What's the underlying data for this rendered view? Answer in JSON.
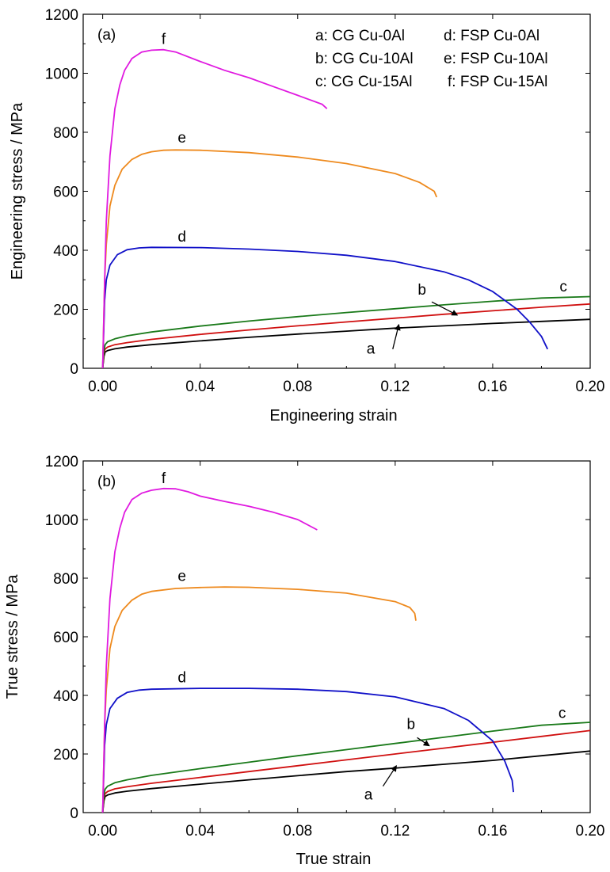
{
  "chart_data": [
    {
      "type": "line",
      "panel_label": "(a)",
      "xlabel": "Engineering strain",
      "ylabel": "Engineering stress / MPa",
      "xlim": [
        -0.008,
        0.2
      ],
      "ylim": [
        0,
        1200
      ],
      "xticks": [
        "0.00",
        "0.04",
        "0.08",
        "0.12",
        "0.16",
        "0.20"
      ],
      "yticks": [
        "0",
        "200",
        "400",
        "600",
        "800",
        "1000",
        "1200"
      ],
      "legend": [
        "a: CG Cu-0Al",
        "b: CG Cu-10Al",
        "c: CG Cu-15Al",
        "d: FSP Cu-0Al",
        "e: FSP Cu-10Al",
        "f: FSP Cu-15Al"
      ],
      "series": [
        {
          "name": "a",
          "color": "#000000",
          "x": [
            0,
            0.0005,
            0.001,
            0.002,
            0.005,
            0.01,
            0.02,
            0.04,
            0.06,
            0.08,
            0.1,
            0.12,
            0.14,
            0.16,
            0.18,
            0.2
          ],
          "y": [
            0,
            40,
            55,
            60,
            66,
            72,
            80,
            93,
            105,
            116,
            126,
            136,
            144,
            152,
            159,
            166
          ]
        },
        {
          "name": "b",
          "color": "#d01010",
          "x": [
            0,
            0.0005,
            0.001,
            0.002,
            0.005,
            0.01,
            0.02,
            0.04,
            0.06,
            0.08,
            0.1,
            0.12,
            0.14,
            0.16,
            0.18,
            0.2
          ],
          "y": [
            0,
            50,
            65,
            72,
            80,
            87,
            98,
            115,
            130,
            144,
            157,
            170,
            183,
            195,
            207,
            218
          ]
        },
        {
          "name": "c",
          "color": "#1a7a1a",
          "x": [
            0,
            0.0005,
            0.001,
            0.002,
            0.005,
            0.01,
            0.02,
            0.04,
            0.06,
            0.08,
            0.1,
            0.12,
            0.14,
            0.16,
            0.18,
            0.2
          ],
          "y": [
            0,
            60,
            80,
            90,
            100,
            110,
            123,
            143,
            160,
            175,
            189,
            202,
            215,
            227,
            238,
            243
          ]
        },
        {
          "name": "d",
          "color": "#1010c8",
          "x": [
            0,
            0.0008,
            0.0015,
            0.003,
            0.006,
            0.01,
            0.015,
            0.02,
            0.04,
            0.06,
            0.08,
            0.1,
            0.12,
            0.14,
            0.15,
            0.16,
            0.17,
            0.175,
            0.18,
            0.1825
          ],
          "y": [
            0,
            230,
            300,
            350,
            385,
            402,
            408,
            410,
            409,
            404,
            396,
            383,
            362,
            327,
            300,
            260,
            200,
            158,
            108,
            65
          ]
        },
        {
          "name": "e",
          "color": "#ee8a1e",
          "x": [
            0,
            0.0008,
            0.0015,
            0.003,
            0.005,
            0.008,
            0.012,
            0.016,
            0.02,
            0.025,
            0.03,
            0.04,
            0.06,
            0.08,
            0.1,
            0.12,
            0.13,
            0.136,
            0.137
          ],
          "y": [
            0,
            300,
            420,
            550,
            620,
            675,
            708,
            725,
            734,
            739,
            740,
            739,
            731,
            716,
            694,
            660,
            630,
            600,
            580
          ]
        },
        {
          "name": "f",
          "color": "#e01ae0",
          "x": [
            0,
            0.0008,
            0.0015,
            0.003,
            0.005,
            0.007,
            0.009,
            0.012,
            0.016,
            0.02,
            0.025,
            0.03,
            0.04,
            0.05,
            0.06,
            0.07,
            0.08,
            0.09,
            0.092
          ],
          "y": [
            0,
            300,
            500,
            720,
            880,
            960,
            1010,
            1050,
            1072,
            1078,
            1080,
            1072,
            1040,
            1010,
            985,
            955,
            925,
            895,
            880
          ]
        }
      ],
      "curve_labels": [
        {
          "text": "a",
          "x": 0.11,
          "y": 50
        },
        {
          "text": "b",
          "x": 0.131,
          "y": 250
        },
        {
          "text": "c",
          "x": 0.189,
          "y": 260
        },
        {
          "text": "d",
          "x": 0.0325,
          "y": 430
        },
        {
          "text": "e",
          "x": 0.0325,
          "y": 765
        },
        {
          "text": "f",
          "x": 0.025,
          "y": 1100
        }
      ],
      "arrows": [
        {
          "label": "a",
          "from": [
            0.119,
            65
          ],
          "to": [
            0.1215,
            148
          ]
        },
        {
          "label": "b",
          "from": [
            0.135,
            225
          ],
          "to": [
            0.1455,
            180
          ]
        }
      ]
    },
    {
      "type": "line",
      "panel_label": "(b)",
      "xlabel": "True strain",
      "ylabel": "True stress / MPa",
      "xlim": [
        -0.008,
        0.2
      ],
      "ylim": [
        0,
        1200
      ],
      "xticks": [
        "0.00",
        "0.04",
        "0.08",
        "0.12",
        "0.16",
        "0.20"
      ],
      "yticks": [
        "0",
        "200",
        "400",
        "600",
        "800",
        "1000",
        "1200"
      ],
      "series": [
        {
          "name": "a",
          "color": "#000000",
          "x": [
            0,
            0.0005,
            0.001,
            0.002,
            0.005,
            0.01,
            0.02,
            0.04,
            0.06,
            0.08,
            0.1,
            0.12,
            0.14,
            0.16,
            0.18,
            0.2
          ],
          "y": [
            0,
            40,
            55,
            60,
            67,
            73,
            82,
            97,
            112,
            126,
            140,
            152,
            165,
            178,
            194,
            210
          ]
        },
        {
          "name": "b",
          "color": "#d01010",
          "x": [
            0,
            0.0005,
            0.001,
            0.002,
            0.005,
            0.01,
            0.02,
            0.04,
            0.06,
            0.08,
            0.1,
            0.12,
            0.14,
            0.16,
            0.18,
            0.2
          ],
          "y": [
            0,
            50,
            65,
            72,
            81,
            88,
            100,
            120,
            140,
            160,
            180,
            200,
            220,
            240,
            260,
            280
          ]
        },
        {
          "name": "c",
          "color": "#1a7a1a",
          "x": [
            0,
            0.0005,
            0.001,
            0.002,
            0.005,
            0.01,
            0.02,
            0.04,
            0.06,
            0.08,
            0.1,
            0.12,
            0.14,
            0.16,
            0.18,
            0.2
          ],
          "y": [
            0,
            60,
            80,
            90,
            102,
            112,
            127,
            150,
            172,
            194,
            215,
            236,
            257,
            278,
            298,
            308
          ]
        },
        {
          "name": "d",
          "color": "#1010c8",
          "x": [
            0,
            0.0008,
            0.0015,
            0.003,
            0.006,
            0.01,
            0.015,
            0.02,
            0.04,
            0.06,
            0.08,
            0.1,
            0.12,
            0.14,
            0.15,
            0.16,
            0.165,
            0.168,
            0.1685
          ],
          "y": [
            0,
            230,
            300,
            355,
            390,
            410,
            418,
            421,
            424,
            424,
            421,
            413,
            395,
            355,
            315,
            245,
            175,
            110,
            70
          ]
        },
        {
          "name": "e",
          "color": "#ee8a1e",
          "x": [
            0,
            0.0008,
            0.0015,
            0.003,
            0.005,
            0.008,
            0.012,
            0.016,
            0.02,
            0.03,
            0.04,
            0.05,
            0.06,
            0.08,
            0.1,
            0.12,
            0.126,
            0.128,
            0.1285
          ],
          "y": [
            0,
            300,
            420,
            560,
            635,
            690,
            725,
            745,
            755,
            765,
            768,
            770,
            769,
            762,
            749,
            720,
            700,
            680,
            655
          ]
        },
        {
          "name": "f",
          "color": "#e01ae0",
          "x": [
            0,
            0.0008,
            0.0015,
            0.003,
            0.005,
            0.007,
            0.009,
            0.012,
            0.016,
            0.02,
            0.025,
            0.03,
            0.035,
            0.04,
            0.05,
            0.06,
            0.07,
            0.08,
            0.088
          ],
          "y": [
            0,
            300,
            500,
            730,
            890,
            970,
            1025,
            1068,
            1090,
            1100,
            1106,
            1105,
            1095,
            1080,
            1062,
            1045,
            1025,
            1000,
            965
          ]
        }
      ],
      "curve_labels": [
        {
          "text": "a",
          "x": 0.109,
          "y": 45
        },
        {
          "text": "b",
          "x": 0.1265,
          "y": 285
        },
        {
          "text": "c",
          "x": 0.1885,
          "y": 323
        },
        {
          "text": "d",
          "x": 0.0325,
          "y": 445
        },
        {
          "text": "e",
          "x": 0.0325,
          "y": 790
        },
        {
          "text": "f",
          "x": 0.025,
          "y": 1125
        }
      ],
      "arrows": [
        {
          "label": "a",
          "from": [
            0.115,
            90
          ],
          "to": [
            0.1205,
            160
          ]
        },
        {
          "label": "b",
          "from": [
            0.129,
            256
          ],
          "to": [
            0.134,
            228
          ]
        }
      ]
    }
  ]
}
